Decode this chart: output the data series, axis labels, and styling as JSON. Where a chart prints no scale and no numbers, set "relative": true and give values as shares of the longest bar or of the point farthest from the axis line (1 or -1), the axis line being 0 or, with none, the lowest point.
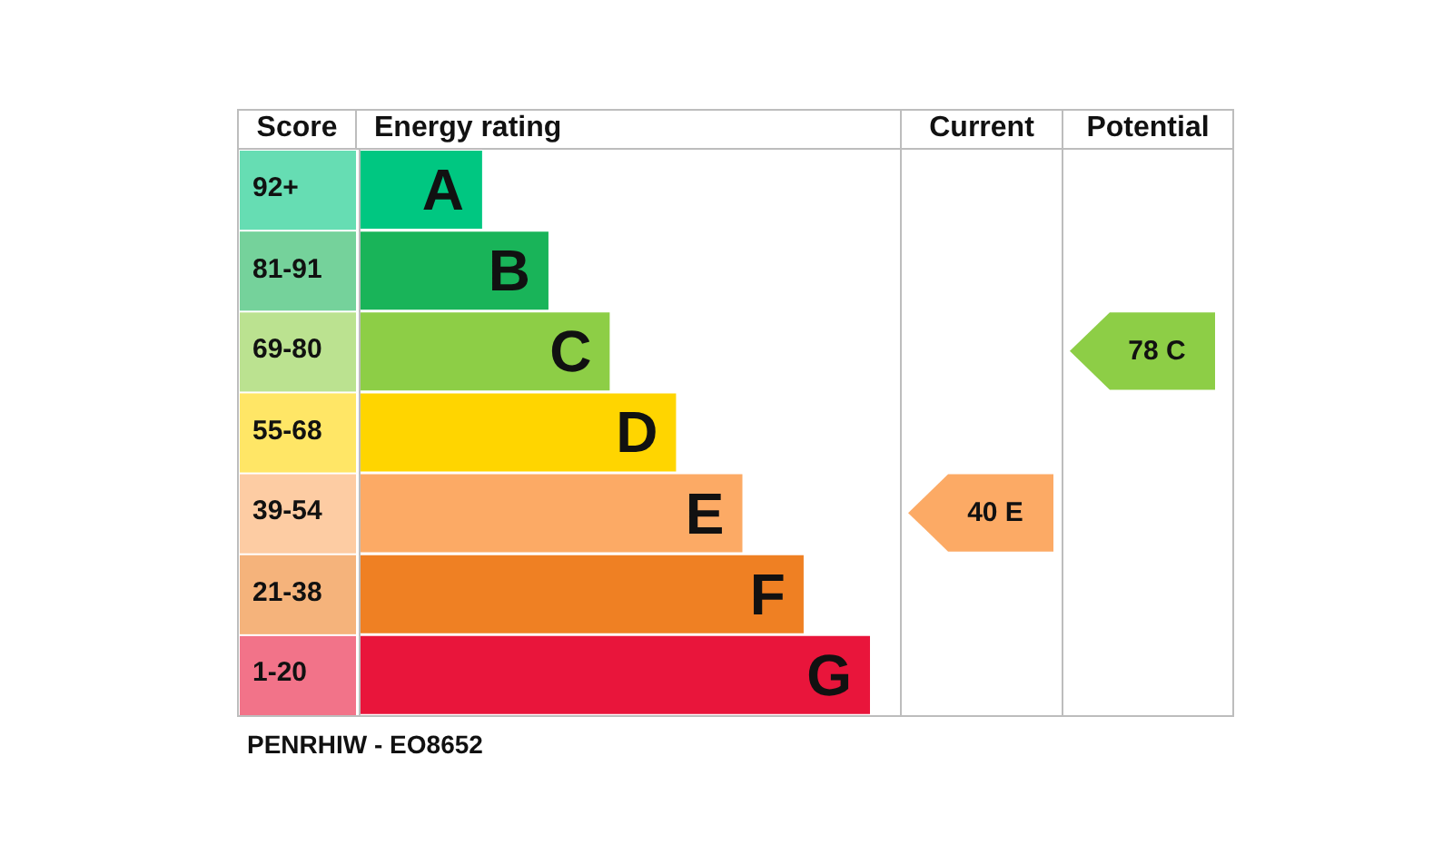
{
  "chart_data": {
    "type": "bar",
    "orientation": "horizontal",
    "relative": true,
    "xlabel": "Energy rating",
    "categories": [
      "A",
      "B",
      "C",
      "D",
      "E",
      "F",
      "G"
    ],
    "values": [
      0.24,
      0.37,
      0.49,
      0.62,
      0.75,
      0.87,
      1
    ],
    "colors": [
      "#00c781",
      "#19b459",
      "#8dce46",
      "#ffd500",
      "#fcaa65",
      "#ef8023",
      "#e9153b"
    ],
    "annotations": [
      "92+",
      "81-91",
      "69-80",
      "55-68",
      "39-54",
      "21-38",
      "1-20",
      "Score",
      "Current",
      "Potential",
      "40 E",
      "78 C",
      "PENRHIW - EO8652"
    ]
  }
}
